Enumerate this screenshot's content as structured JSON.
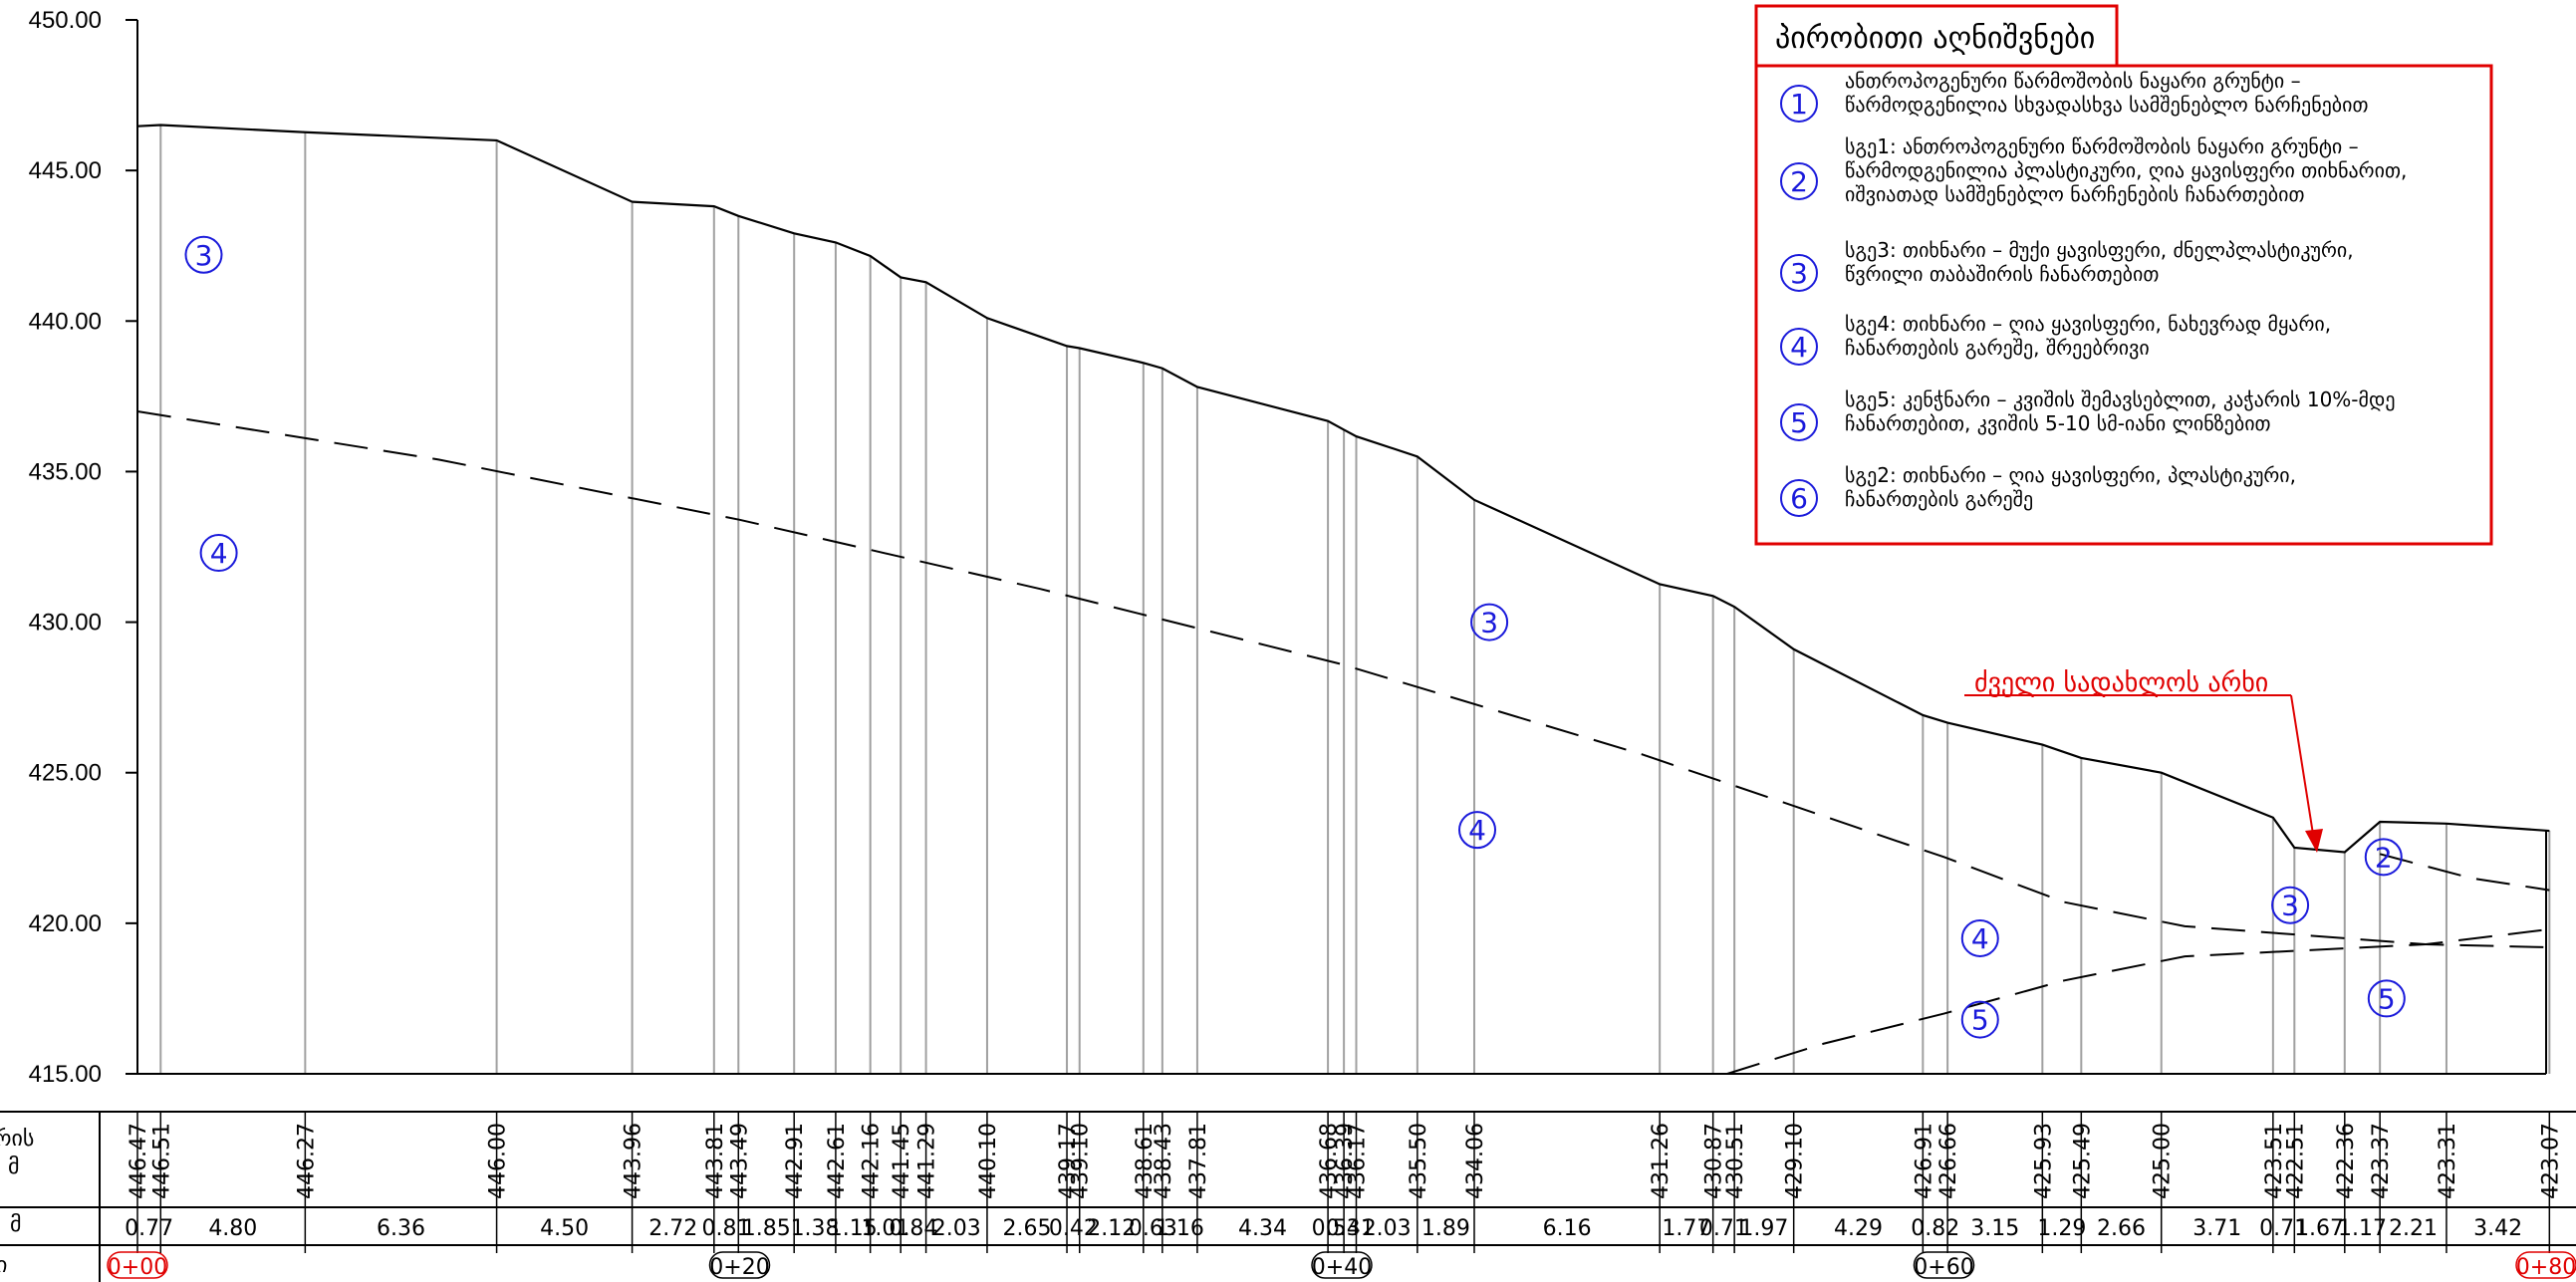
{
  "colors": {
    "ground_line": "#000000",
    "soil_boundary": "#000000",
    "vertical_grid": "#a0a0a0",
    "soil_marker": "#1a1adb",
    "legend_border": "#e00000",
    "annotation": "#e00000"
  },
  "chart_data": {
    "type": "line",
    "y_axis": {
      "ylim": [
        415,
        450
      ],
      "ticks": [
        "450.00",
        "445.00",
        "440.00",
        "435.00",
        "430.00",
        "425.00",
        "420.00",
        "415.00"
      ],
      "tick_values": [
        450,
        445,
        440,
        435,
        430,
        425,
        420,
        415
      ]
    },
    "x_range": [
      0,
      80
    ],
    "ground_profile": {
      "x": [
        0,
        0.77,
        5.57,
        11.93,
        16.43,
        19.15,
        19.96,
        21.81,
        23.19,
        24.34,
        25.35,
        26.19,
        28.22,
        30.87,
        31.29,
        33.41,
        34.04,
        35.2,
        39.54,
        40.07,
        40.48,
        42.51,
        44.4,
        50.56,
        52.33,
        53.04,
        55.01,
        59.3,
        60.12,
        63.27,
        64.56,
        67.22,
        70.93,
        71.64,
        73.31,
        74.48,
        76.69,
        80.11
      ],
      "elev": [
        446.47,
        446.51,
        446.27,
        446.0,
        443.96,
        443.81,
        443.49,
        442.91,
        442.61,
        442.16,
        441.45,
        441.29,
        440.1,
        439.17,
        439.1,
        438.61,
        438.43,
        437.81,
        436.68,
        436.39,
        436.17,
        435.5,
        434.06,
        431.26,
        430.87,
        430.51,
        429.1,
        426.91,
        426.66,
        425.93,
        425.49,
        425.0,
        423.51,
        422.51,
        422.36,
        423.37,
        423.31,
        423.07
      ]
    },
    "boundary_3_4": {
      "x": [
        0,
        10,
        20,
        30,
        40,
        50,
        60,
        64,
        68,
        72,
        76,
        80.11
      ],
      "elev": [
        437.0,
        435.4,
        433.4,
        431.1,
        428.6,
        425.6,
        422.2,
        420.7,
        419.9,
        419.6,
        419.3,
        419.2
      ]
    },
    "boundary_3_2": {
      "x": [
        74.48,
        77.5,
        80.11
      ],
      "elev": [
        422.3,
        421.5,
        421.1
      ]
    },
    "boundary_4_5": {
      "x": [
        52.8,
        56,
        60,
        64,
        68,
        72,
        76,
        80.11
      ],
      "elev": [
        415.0,
        416.0,
        417.0,
        418.1,
        418.9,
        419.1,
        419.3,
        419.8
      ]
    },
    "soil_markers": [
      {
        "num": "3",
        "x": 2.2,
        "elev": 442.2
      },
      {
        "num": "4",
        "x": 2.7,
        "elev": 432.3
      },
      {
        "num": "3",
        "x": 44.9,
        "elev": 430.0
      },
      {
        "num": "4",
        "x": 44.5,
        "elev": 423.1
      },
      {
        "num": "4",
        "x": 61.2,
        "elev": 419.5
      },
      {
        "num": "5",
        "x": 61.2,
        "elev": 416.8
      },
      {
        "num": "3",
        "x": 71.5,
        "elev": 420.6
      },
      {
        "num": "2",
        "x": 74.6,
        "elev": 422.2
      },
      {
        "num": "5",
        "x": 74.7,
        "elev": 417.5
      }
    ],
    "elevation_row": [
      "446.47",
      "446.51",
      "446.27",
      "446.00",
      "443.96",
      "443.81",
      "443.49",
      "442.91",
      "442.61",
      "442.16",
      "441.45",
      "441.29",
      "440.10",
      "439.17",
      "439.10",
      "438.61",
      "438.43",
      "437.81",
      "436.68",
      "436.39",
      "436.17",
      "435.50",
      "434.06",
      "431.26",
      "430.87",
      "430.51",
      "429.10",
      "426.91",
      "426.66",
      "425.93",
      "425.49",
      "425.00",
      "423.51",
      "422.51",
      "422.36",
      "423.37",
      "423.31",
      "423.07"
    ],
    "distance_row": [
      "0.77",
      "4.80",
      "6.36",
      "4.50",
      "2.72",
      "0.81",
      "1.85",
      "1.38",
      "1.15",
      "1.01",
      "0.84",
      "2.03",
      "2.65",
      "0.42",
      "2.12",
      "0.63",
      "1.16",
      "4.34",
      "0.53",
      "0.41",
      "2.03",
      "1.89",
      "6.16",
      "1.77",
      "0.71",
      "1.97",
      "4.29",
      "0.82",
      "3.15",
      "1.29",
      "2.66",
      "3.71",
      "0.71",
      "1.67",
      "1.17",
      "2.21",
      "3.42"
    ],
    "stations": [
      {
        "label": "0+00",
        "x": 0,
        "red": true
      },
      {
        "label": "0+20",
        "x": 20,
        "red": false
      },
      {
        "label": "0+40",
        "x": 40,
        "red": false
      },
      {
        "label": "0+60",
        "x": 60,
        "red": false
      },
      {
        "label": "0+80",
        "x": 80,
        "red": true
      }
    ]
  },
  "row_labels": {
    "elevation_label_1": "რის",
    "elevation_label_2": ", მ",
    "distance_label": "მ",
    "station_label": "ი"
  },
  "annotation": {
    "text": "ძველი სადახლოს არხი"
  },
  "legend": {
    "title": "პირობითი აღნიშვნები",
    "items": [
      {
        "num": "1",
        "lines": [
          "ანთროპოგენური წარმოშობის ნაყარი გრუნტი –",
          "წარმოდგენილია სხვადასხვა სამშენებლო ნარჩენებით"
        ]
      },
      {
        "num": "2",
        "lines": [
          "სგე1: ანთროპოგენური წარმოშობის ნაყარი გრუნტი –",
          "წარმოდგენილია პლასტიკური, ღია ყავისფერი თიხნარით,",
          "იშვიათად სამშენებლო ნარჩენების ჩანართებით"
        ]
      },
      {
        "num": "3",
        "lines": [
          "სგე3: თიხნარი – მუქი ყავისფერი, ძნელპლასტიკური,",
          "წვრილი თაბაშირის ჩანართებით"
        ]
      },
      {
        "num": "4",
        "lines": [
          "სგე4: თიხნარი – ღია ყავისფერი, ნახევრად მყარი,",
          "ჩანართების გარეშე, შრეებრივი"
        ]
      },
      {
        "num": "5",
        "lines": [
          "სგე5: კენჭნარი – კვიშის შემავსებლით, კაჭარის 10%-მდე",
          "ჩანართებით, კვიშის 5-10 სმ-იანი ლინზებით"
        ]
      },
      {
        "num": "6",
        "lines": [
          "სგე2: თიხნარი – ღია ყავისფერი, პლასტიკური,",
          "ჩანართების გარეშე"
        ]
      }
    ]
  }
}
